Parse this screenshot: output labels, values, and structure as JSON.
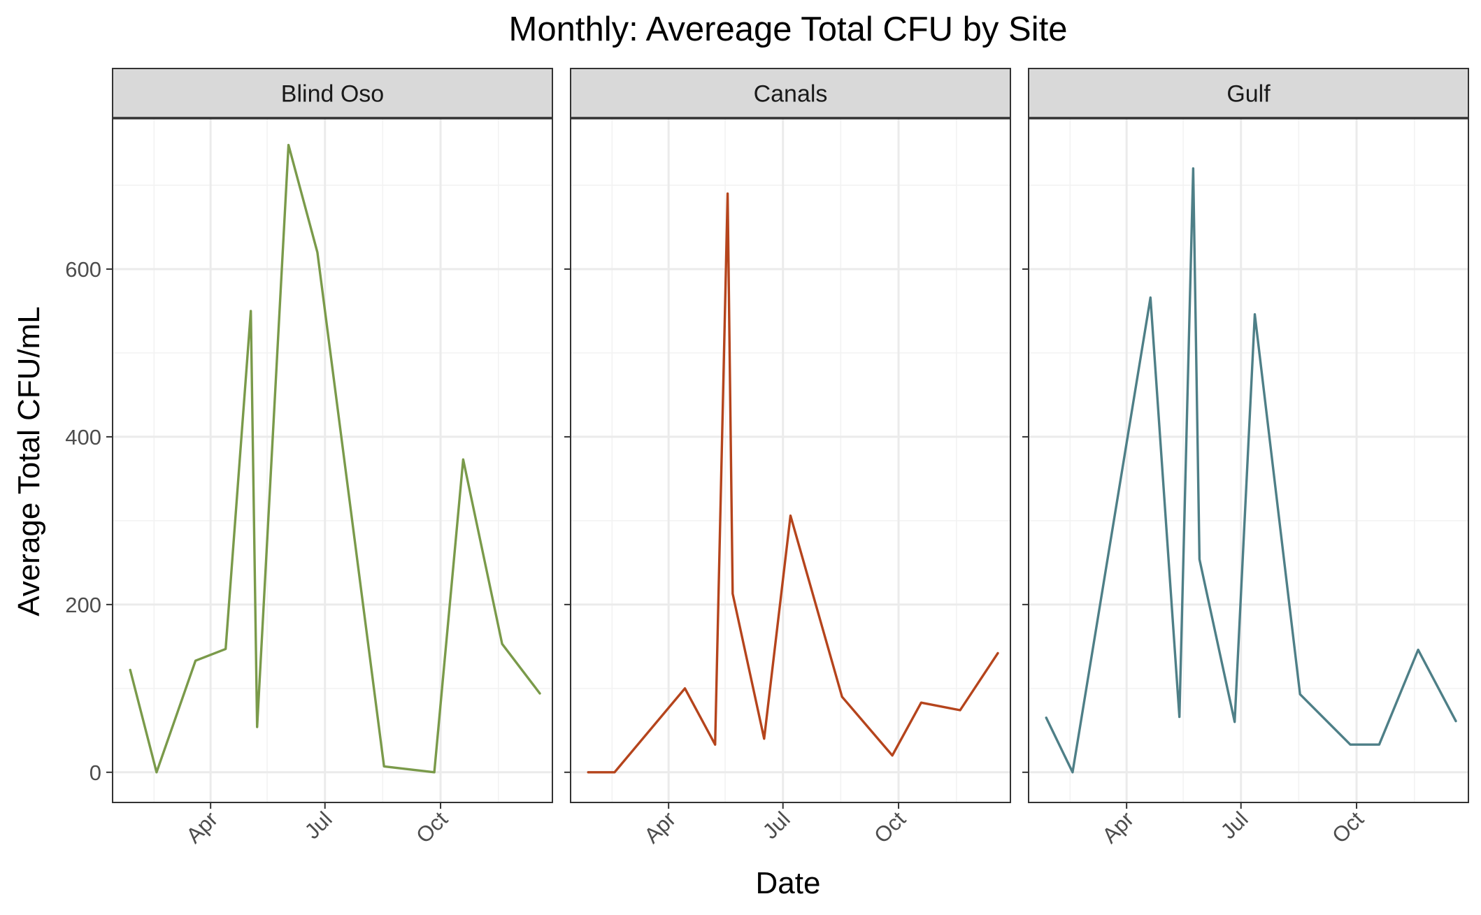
{
  "chart_data": {
    "type": "line",
    "title": "Monthly: Avereage Total CFU by Site",
    "xlabel": "Date",
    "ylabel": "Average Total CFU/mL",
    "x_ticks": [
      "Apr",
      "Jul",
      "Oct"
    ],
    "y_ticks": [
      0,
      200,
      400,
      600
    ],
    "ylim": [
      -36,
      780
    ],
    "xlim": [
      "2022-01-13",
      "2022-12-29"
    ],
    "grid": true,
    "legend": "none",
    "facets": [
      {
        "name": "Blind Oso",
        "color": "#7a9a4a",
        "x": [
          "2022-01-27",
          "2022-02-17",
          "2022-03-20",
          "2022-04-13",
          "2022-05-03",
          "2022-05-08",
          "2022-06-02",
          "2022-06-25",
          "2022-08-17",
          "2022-09-26",
          "2022-10-19",
          "2022-11-19",
          "2022-12-19"
        ],
        "values": [
          122,
          0,
          133,
          147,
          550,
          54,
          748,
          620,
          7,
          0,
          373,
          153,
          94
        ]
      },
      {
        "name": "Canals",
        "color": "#b5441c",
        "x": [
          "2022-01-27",
          "2022-02-17",
          "2022-04-14",
          "2022-05-08",
          "2022-05-18",
          "2022-05-22",
          "2022-06-16",
          "2022-07-07",
          "2022-08-17",
          "2022-09-26",
          "2022-10-19",
          "2022-11-19",
          "2022-12-19"
        ],
        "values": [
          0,
          0,
          100,
          33,
          690,
          213,
          40,
          306,
          90,
          20,
          83,
          74,
          142
        ]
      },
      {
        "name": "Gulf",
        "color": "#4e7f87",
        "x": [
          "2022-01-27",
          "2022-02-17",
          "2022-04-20",
          "2022-05-13",
          "2022-05-24",
          "2022-05-29",
          "2022-06-26",
          "2022-07-12",
          "2022-08-17",
          "2022-09-26",
          "2022-10-19",
          "2022-11-19",
          "2022-12-19"
        ],
        "values": [
          65,
          0,
          566,
          66,
          720,
          254,
          60,
          546,
          93,
          33,
          33,
          146,
          61
        ]
      }
    ]
  }
}
